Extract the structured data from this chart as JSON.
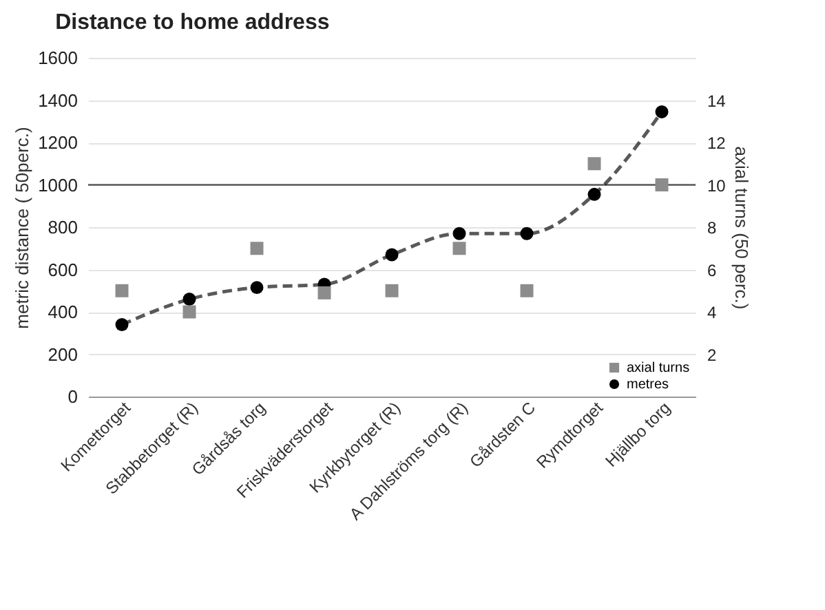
{
  "chart_data": {
    "type": "line",
    "title": "Distance to home address",
    "ylabel": "metric distance ( 50perc.)",
    "y2label": "axial turns (50 perc.)",
    "categories": [
      "Komettorget",
      "Stabbetorget (R)",
      "Gårdsås torg",
      "Friskväderstorget",
      "Kyrkbytorget (R)",
      "A Dahlströms torg (R)",
      "Gårdsten C",
      "Rymdtorget",
      "Hjällbo torg"
    ],
    "series": [
      {
        "name": "axial turns",
        "type": "scatter",
        "axis": "y2",
        "marker": "square",
        "color": "#8c8c8c",
        "values": [
          5,
          4,
          7,
          4.9,
          5,
          7,
          5,
          11,
          10
        ]
      },
      {
        "name": "metres",
        "type": "line",
        "marker": "circle",
        "line_style": "dashed",
        "color": "#000000",
        "values": [
          340,
          460,
          515,
          530,
          670,
          770,
          770,
          955,
          1345
        ]
      }
    ],
    "ylim": [
      0,
      1600
    ],
    "yticks": [
      0,
      200,
      400,
      600,
      800,
      1000,
      1200,
      1400,
      1600
    ],
    "y2lim": [
      0,
      16
    ],
    "y2ticks": [
      2,
      4,
      6,
      8,
      10,
      12,
      14
    ],
    "ref_lines": [
      {
        "axis": "y",
        "value": 1000,
        "color": "#595959"
      }
    ],
    "grid": "y",
    "legend": "bottom right"
  }
}
